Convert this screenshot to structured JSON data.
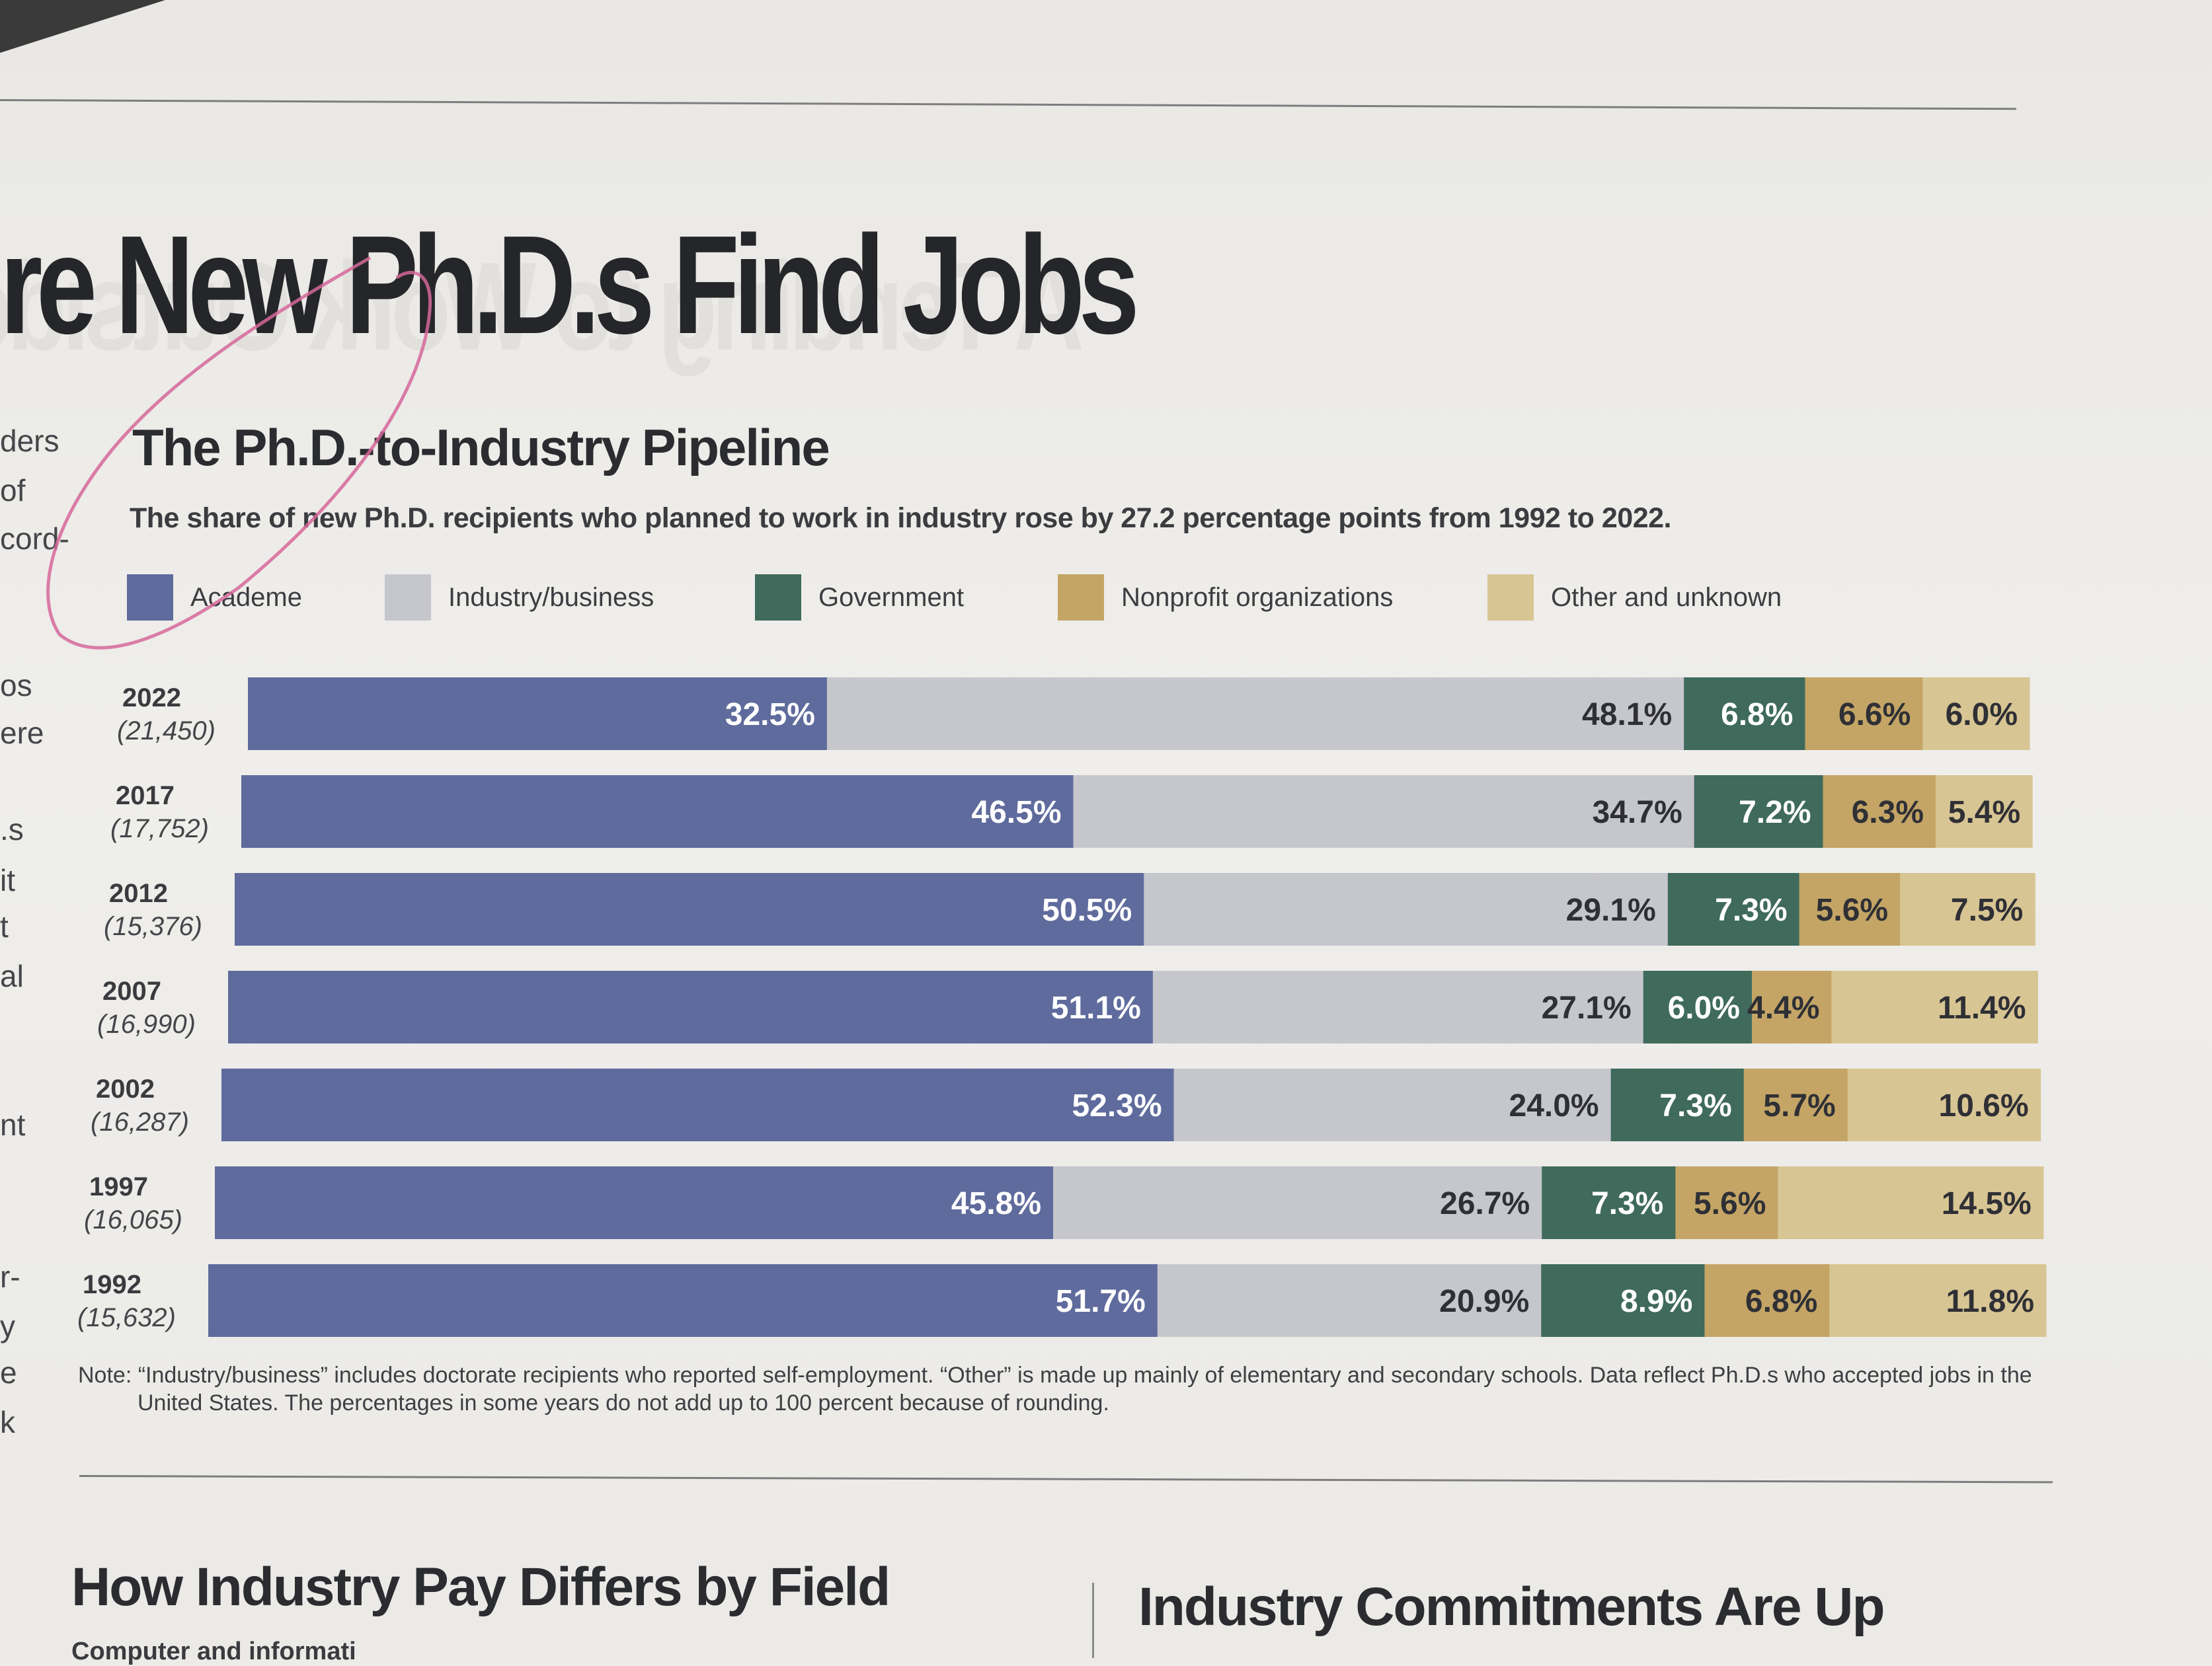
{
  "page": {
    "headline": "re New Ph.D.s Find Jobs",
    "side_text": [
      "ders",
      "of",
      "cord-",
      "os",
      "ere",
      ".s",
      "it",
      "t",
      "al",
      "nt",
      "r-",
      "y",
      "e",
      "k"
    ],
    "bottom_left_title": "How Industry Pay Differs by Field",
    "bottom_left_subtitle": "Computer and informati",
    "bottom_right_title": "Industry Commitments Are Up"
  },
  "chart_data": {
    "type": "bar",
    "orientation": "horizontal",
    "stacked": true,
    "title": "The Ph.D.-to-Industry Pipeline",
    "subtitle": "The share of new Ph.D. recipients who planned to work in industry rose by 27.2 percentage points from 1992 to 2022.",
    "legend_position": "top",
    "grid": false,
    "categories": [
      {
        "year": "2022",
        "count": "(21,450)"
      },
      {
        "year": "2017",
        "count": "(17,752)"
      },
      {
        "year": "2012",
        "count": "(15,376)"
      },
      {
        "year": "2007",
        "count": "(16,990)"
      },
      {
        "year": "2002",
        "count": "(16,287)"
      },
      {
        "year": "1997",
        "count": "(16,065)"
      },
      {
        "year": "1992",
        "count": "(15,632)"
      }
    ],
    "series": [
      {
        "name": "Academe",
        "color": "#5f6b9c",
        "label_color": "#ffffff",
        "values": [
          32.5,
          46.5,
          50.5,
          51.1,
          52.3,
          45.8,
          51.7
        ]
      },
      {
        "name": "Industry/business",
        "color": "#c6c6cd",
        "label_color": "#2f3035",
        "values": [
          48.1,
          34.7,
          29.1,
          27.1,
          24.0,
          26.7,
          20.9
        ]
      },
      {
        "name": "Government",
        "color": "#3f6a5c",
        "label_color": "#ffffff",
        "values": [
          6.8,
          7.2,
          7.3,
          6.0,
          7.3,
          7.3,
          8.9
        ]
      },
      {
        "name": "Nonprofit organizations",
        "color": "#c4a566",
        "label_color": "#2f3035",
        "values": [
          6.6,
          6.3,
          5.6,
          4.4,
          5.7,
          5.6,
          6.8
        ]
      },
      {
        "name": "Other and unknown",
        "color": "#d8c594",
        "label_color": "#2f3035",
        "values": [
          6.0,
          5.4,
          7.5,
          11.4,
          10.6,
          14.5,
          11.8
        ]
      }
    ],
    "value_suffix": "%",
    "note": "Note: “Industry/business” includes doctorate recipients who reported self-employment. “Other” is made up mainly of elementary and secondary schools. Data reflect Ph.D.s who accepted jobs in the United States. The percentages in some years do not add up to 100 percent because of rounding."
  }
}
